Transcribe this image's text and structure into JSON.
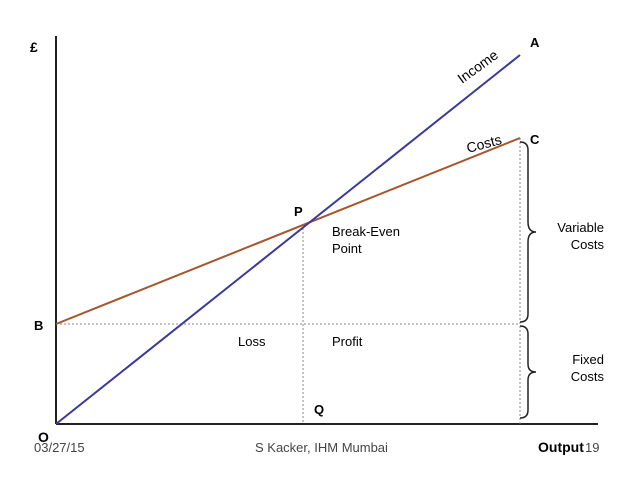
{
  "diagram": {
    "y_axis_label": "£",
    "x_axis_label": "Output",
    "origin_label": "O",
    "income_label": "Income",
    "costs_label": "Costs",
    "point_a": "A",
    "point_c": "C",
    "point_p": "P",
    "point_b": "B",
    "point_q": "Q",
    "break_even_line1": "Break-Even",
    "break_even_line2": "Point",
    "loss_label": "Loss",
    "profit_label": "Profit",
    "variable_costs_line1": "Variable",
    "variable_costs_line2": "Costs",
    "fixed_costs_line1": "Fixed",
    "fixed_costs_line2": "Costs",
    "colors": {
      "income_line": "#3a3a9a",
      "costs_line": "#a8552e",
      "axis": "#222222",
      "guide": "#888888"
    }
  },
  "footer": {
    "date": "03/27/15",
    "author": "S Kacker, IHM Mumbai",
    "page_number": "19"
  }
}
